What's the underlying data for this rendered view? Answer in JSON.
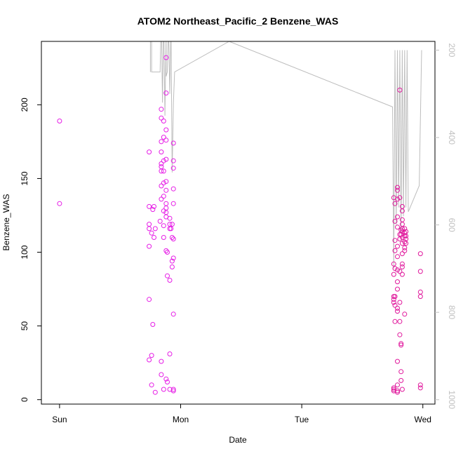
{
  "chart_data": {
    "type": "scatter",
    "title": "ATOM2 Northeast_Pacific_2 Benzene_WAS",
    "xlabel": "Date",
    "ylabel": "Benzene_WAS",
    "x_ticks": [
      "Sun",
      "Mon",
      "Tue",
      "Wed"
    ],
    "y_ticks": [
      0,
      50,
      100,
      150,
      200
    ],
    "y2_ticks": [
      200,
      400,
      600,
      800,
      1000
    ],
    "xlim": [
      -0.15,
      3.1
    ],
    "ylim": [
      -3,
      243
    ],
    "y2lim": [
      1010,
      180
    ],
    "y2_reversed": true,
    "grid": false,
    "colors": {
      "points": "#e61ee6",
      "points_late": "#e0189c",
      "pressure_line": "#bdbdbd"
    },
    "series": [
      {
        "values": [
          [
            0.0,
            189
          ],
          [
            0.0,
            133
          ],
          [
            0.74,
            168
          ],
          [
            0.74,
            131
          ],
          [
            0.74,
            119
          ],
          [
            0.74,
            116
          ],
          [
            0.74,
            104
          ],
          [
            0.74,
            68
          ],
          [
            0.74,
            27
          ],
          [
            0.76,
            113
          ],
          [
            0.76,
            30
          ],
          [
            0.76,
            10
          ],
          [
            0.78,
            110
          ],
          [
            0.77,
            129
          ],
          [
            0.78,
            131
          ],
          [
            0.77,
            51
          ],
          [
            0.79,
            116
          ],
          [
            0.79,
            5
          ],
          [
            0.83,
            121
          ],
          [
            0.84,
            197
          ],
          [
            0.84,
            191
          ],
          [
            0.84,
            175
          ],
          [
            0.84,
            168
          ],
          [
            0.84,
            160
          ],
          [
            0.84,
            158
          ],
          [
            0.84,
            155
          ],
          [
            0.84,
            145
          ],
          [
            0.84,
            136
          ],
          [
            0.84,
            26
          ],
          [
            0.84,
            17
          ],
          [
            0.86,
            189
          ],
          [
            0.86,
            178
          ],
          [
            0.86,
            162
          ],
          [
            0.86,
            155
          ],
          [
            0.86,
            147
          ],
          [
            0.86,
            138
          ],
          [
            0.86,
            128
          ],
          [
            0.86,
            118
          ],
          [
            0.86,
            110
          ],
          [
            0.86,
            7
          ],
          [
            0.88,
            232
          ],
          [
            0.88,
            208
          ],
          [
            0.88,
            183
          ],
          [
            0.88,
            176
          ],
          [
            0.88,
            163
          ],
          [
            0.88,
            148
          ],
          [
            0.88,
            142
          ],
          [
            0.88,
            133
          ],
          [
            0.88,
            130
          ],
          [
            0.88,
            127
          ],
          [
            0.88,
            124
          ],
          [
            0.88,
            101
          ],
          [
            0.88,
            14
          ],
          [
            0.89,
            100
          ],
          [
            0.89,
            84
          ],
          [
            0.89,
            12
          ],
          [
            0.91,
            123
          ],
          [
            0.91,
            119
          ],
          [
            0.91,
            116
          ],
          [
            0.91,
            81
          ],
          [
            0.91,
            31
          ],
          [
            0.91,
            7
          ],
          [
            0.92,
            116
          ],
          [
            0.93,
            119
          ],
          [
            0.93,
            110
          ],
          [
            0.93,
            94
          ],
          [
            0.93,
            90
          ],
          [
            0.94,
            174
          ],
          [
            0.94,
            162
          ],
          [
            0.94,
            157
          ],
          [
            0.94,
            143
          ],
          [
            0.94,
            133
          ],
          [
            0.94,
            109
          ],
          [
            0.94,
            96
          ],
          [
            0.94,
            58
          ],
          [
            0.94,
            7
          ],
          [
            0.94,
            6
          ]
        ]
      },
      {
        "values": [
          [
            2.76,
            137
          ],
          [
            2.76,
            92
          ],
          [
            2.76,
            85
          ],
          [
            2.76,
            70
          ],
          [
            2.76,
            68
          ],
          [
            2.76,
            66
          ],
          [
            2.76,
            8
          ],
          [
            2.76,
            7
          ],
          [
            2.76,
            6
          ],
          [
            2.77,
            133
          ],
          [
            2.77,
            121
          ],
          [
            2.77,
            108
          ],
          [
            2.77,
            101
          ],
          [
            2.77,
            89
          ],
          [
            2.77,
            70
          ],
          [
            2.77,
            64
          ],
          [
            2.77,
            53
          ],
          [
            2.79,
            144
          ],
          [
            2.79,
            142
          ],
          [
            2.79,
            136
          ],
          [
            2.79,
            124
          ],
          [
            2.79,
            117
          ],
          [
            2.79,
            104
          ],
          [
            2.79,
            97
          ],
          [
            2.79,
            88
          ],
          [
            2.79,
            80
          ],
          [
            2.79,
            75
          ],
          [
            2.79,
            62
          ],
          [
            2.79,
            60
          ],
          [
            2.79,
            26
          ],
          [
            2.79,
            10
          ],
          [
            2.79,
            6
          ],
          [
            2.79,
            5
          ],
          [
            2.81,
            210
          ],
          [
            2.81,
            137
          ],
          [
            2.81,
            112
          ],
          [
            2.81,
            109
          ],
          [
            2.81,
            87
          ],
          [
            2.81,
            66
          ],
          [
            2.81,
            53
          ],
          [
            2.81,
            44
          ],
          [
            2.82,
            115
          ],
          [
            2.82,
            112
          ],
          [
            2.82,
            38
          ],
          [
            2.82,
            37
          ],
          [
            2.82,
            19
          ],
          [
            2.82,
            13
          ],
          [
            2.83,
            131
          ],
          [
            2.83,
            128
          ],
          [
            2.83,
            122
          ],
          [
            2.83,
            119
          ],
          [
            2.83,
            116
          ],
          [
            2.83,
            114
          ],
          [
            2.83,
            110
          ],
          [
            2.83,
            106
          ],
          [
            2.83,
            99
          ],
          [
            2.83,
            92
          ],
          [
            2.83,
            90
          ],
          [
            2.83,
            85
          ],
          [
            2.83,
            7
          ],
          [
            2.85,
            116
          ],
          [
            2.85,
            113
          ],
          [
            2.85,
            111
          ],
          [
            2.85,
            107
          ],
          [
            2.85,
            103
          ],
          [
            2.85,
            101
          ],
          [
            2.85,
            58
          ],
          [
            2.86,
            114
          ],
          [
            2.86,
            111
          ],
          [
            2.86,
            109
          ],
          [
            2.86,
            106
          ],
          [
            2.98,
            99
          ],
          [
            2.98,
            87
          ],
          [
            2.98,
            73
          ],
          [
            2.98,
            70
          ],
          [
            2.98,
            10
          ],
          [
            2.98,
            8
          ]
        ]
      }
    ],
    "secondary_line": {
      "name_visible": false,
      "points": [
        [
          0.75,
          250
        ],
        [
          0.75,
          150
        ],
        [
          0.76,
          150
        ],
        [
          0.76,
          250
        ],
        [
          0.83,
          250
        ],
        [
          0.84,
          120
        ],
        [
          0.85,
          320
        ],
        [
          0.86,
          120
        ],
        [
          0.87,
          350
        ],
        [
          0.88,
          160
        ],
        [
          0.88,
          260
        ],
        [
          0.89,
          250
        ],
        [
          0.9,
          140
        ],
        [
          0.91,
          300
        ],
        [
          0.92,
          140
        ],
        [
          0.93,
          480
        ],
        [
          0.94,
          320
        ],
        [
          0.95,
          250
        ],
        [
          1.4,
          180
        ],
        [
          2.75,
          330
        ],
        [
          2.76,
          700
        ],
        [
          2.77,
          200
        ],
        [
          2.78,
          600
        ],
        [
          2.79,
          200
        ],
        [
          2.8,
          560
        ],
        [
          2.81,
          200
        ],
        [
          2.82,
          620
        ],
        [
          2.83,
          200
        ],
        [
          2.84,
          580
        ],
        [
          2.85,
          200
        ],
        [
          2.86,
          560
        ],
        [
          2.87,
          200
        ],
        [
          2.88,
          570
        ],
        [
          2.97,
          510
        ],
        [
          2.99,
          200
        ]
      ]
    }
  }
}
